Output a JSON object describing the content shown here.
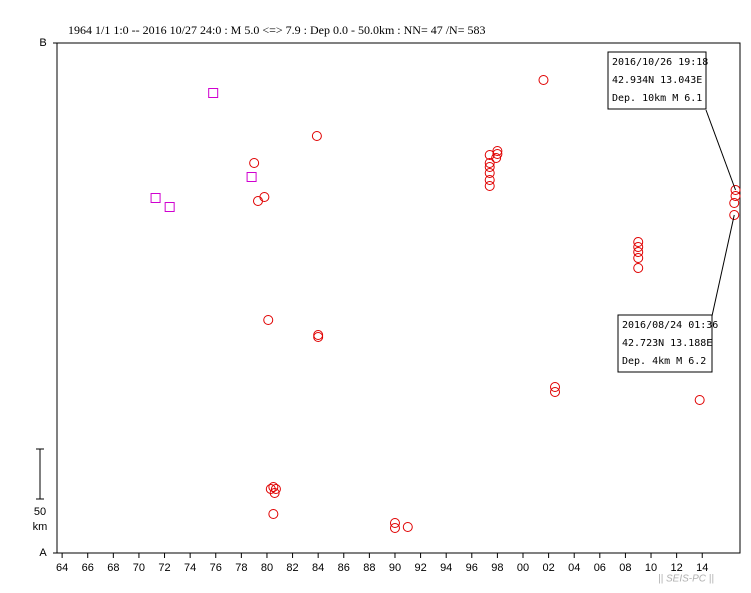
{
  "chart_data": {
    "type": "scatter",
    "title": "1964 1/1 1:0 -- 2016 10/27 24:0  : M 5.0 <=> 7.9   :  Dep 0.0 - 50.0km :  NN= 47 /N= 583",
    "xlim": [
      1963.6,
      2016.95
    ],
    "xticks": [
      {
        "value": 1964,
        "label": "64"
      },
      {
        "value": 1966,
        "label": "66"
      },
      {
        "value": 1968,
        "label": "68"
      },
      {
        "value": 1970,
        "label": "70"
      },
      {
        "value": 1972,
        "label": "72"
      },
      {
        "value": 1974,
        "label": "74"
      },
      {
        "value": 1976,
        "label": "76"
      },
      {
        "value": 1978,
        "label": "78"
      },
      {
        "value": 1980,
        "label": "80"
      },
      {
        "value": 1982,
        "label": "82"
      },
      {
        "value": 1984,
        "label": "84"
      },
      {
        "value": 1986,
        "label": "86"
      },
      {
        "value": 1988,
        "label": "88"
      },
      {
        "value": 1990,
        "label": "90"
      },
      {
        "value": 1992,
        "label": "92"
      },
      {
        "value": 1994,
        "label": "94"
      },
      {
        "value": 1996,
        "label": "96"
      },
      {
        "value": 1998,
        "label": "98"
      },
      {
        "value": 2000,
        "label": "00"
      },
      {
        "value": 2002,
        "label": "02"
      },
      {
        "value": 2004,
        "label": "04"
      },
      {
        "value": 2006,
        "label": "06"
      },
      {
        "value": 2008,
        "label": "08"
      },
      {
        "value": 2010,
        "label": "10"
      },
      {
        "value": 2012,
        "label": "12"
      },
      {
        "value": 2014,
        "label": "14"
      }
    ],
    "ylim": [
      0,
      510
    ],
    "yticks": [
      {
        "value": 0,
        "label": "A"
      },
      {
        "value": 510,
        "label": "B"
      }
    ],
    "scale_bar": {
      "value": 50,
      "unit": "km"
    },
    "series": [
      {
        "color": "#e00000",
        "marker": "circle",
        "x": [
          2001.6,
          1983.9,
          1979.0,
          1979.3,
          1979.8,
          1980.1,
          1984.0,
          1984.0,
          1998.0,
          1998.0,
          1997.9,
          1997.4,
          1997.4,
          1997.4,
          1997.4,
          1997.4,
          1997.4,
          2009.0,
          2009.0,
          2009.0,
          2009.0,
          2009.0,
          2002.5,
          2002.5,
          2013.8,
          1980.5,
          1980.7,
          1980.3,
          1980.6,
          1980.5,
          1990.0,
          1990.0,
          1991.0,
          2016.6,
          2016.6,
          2016.5,
          2016.5
        ],
        "values": [
          473,
          417,
          390,
          352,
          356,
          233,
          218,
          216,
          402,
          399,
          395,
          398,
          390,
          386,
          380,
          373,
          367,
          311,
          306,
          301,
          295,
          285,
          166,
          161,
          153,
          66,
          64,
          64,
          60,
          39,
          30,
          25,
          26,
          363,
          357,
          350,
          338
        ]
      },
      {
        "color": "#d000d0",
        "marker": "square",
        "x": [
          1975.8,
          1971.3,
          1972.4,
          1978.8
        ],
        "values": [
          460,
          355,
          346,
          376
        ]
      }
    ],
    "annotations": [
      {
        "lines": [
          "2016/10/26 19:18",
          "42.934N  13.043E",
          "Dep. 10km   M 6.1"
        ],
        "x": 2016.6,
        "y": 363
      },
      {
        "lines": [
          "2016/08/24 01:36",
          "42.723N  13.188E",
          "Dep. 4km    M 6.2"
        ],
        "x": 2016.5,
        "y": 338
      }
    ],
    "footer": "|| SEIS-PC ||"
  }
}
